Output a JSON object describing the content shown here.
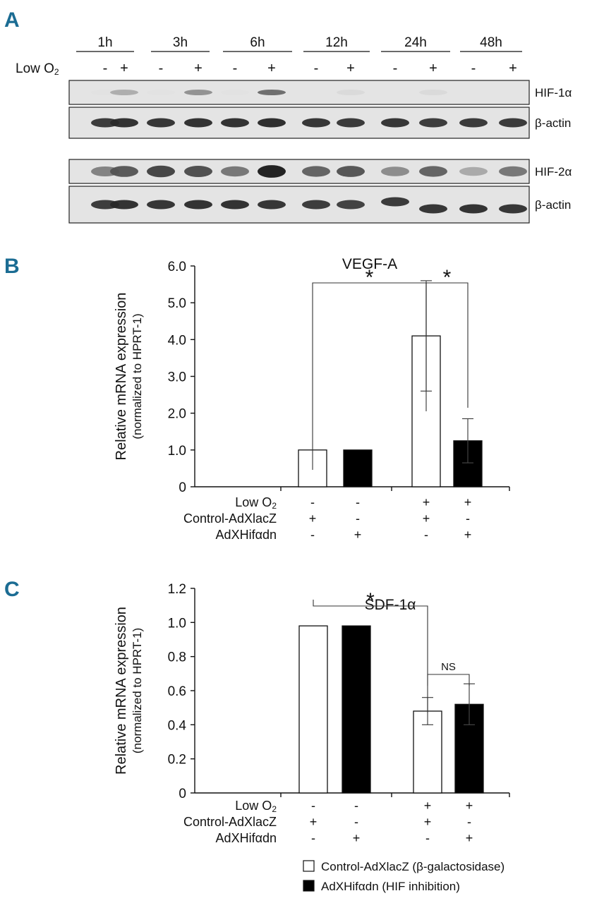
{
  "panel_a": {
    "letter": "A",
    "timepoints": [
      "1h",
      "3h",
      "6h",
      "12h",
      "24h",
      "48h"
    ],
    "condition_label": "Low O2",
    "signs": [
      "-",
      "+",
      "-",
      "+",
      "-",
      "+",
      "-",
      "+",
      "-",
      "+",
      "-",
      "+"
    ],
    "blots": [
      {
        "label": "HIF-1α",
        "intensities": [
          0.02,
          0.28,
          0.02,
          0.42,
          0.02,
          0.6,
          0.0,
          0.06,
          0.0,
          0.06,
          0.0,
          0.0
        ]
      },
      {
        "label": "β-actin",
        "intensities": [
          0.85,
          0.9,
          0.88,
          0.9,
          0.9,
          0.92,
          0.88,
          0.86,
          0.88,
          0.85,
          0.86,
          0.86
        ]
      },
      {
        "label": "HIF-2α",
        "intensities": [
          0.5,
          0.7,
          0.8,
          0.75,
          0.55,
          0.98,
          0.65,
          0.72,
          0.45,
          0.65,
          0.3,
          0.55
        ]
      },
      {
        "label": "β-actin",
        "intensities": [
          0.85,
          0.9,
          0.88,
          0.9,
          0.9,
          0.88,
          0.85,
          0.82,
          0.86,
          0.88,
          0.9,
          0.88
        ]
      }
    ]
  },
  "chart_data": [
    {
      "panel": "B",
      "type": "bar",
      "title": "VEGF-A",
      "ylabel": "Relative mRNA expression",
      "ylabel2": "(normalized to HPRT-1)",
      "ylim": [
        0,
        6
      ],
      "yticks": [
        "0",
        "1.0",
        "2.0",
        "3.0",
        "4.0",
        "5.0",
        "6.0"
      ],
      "row_labels": [
        "Low O2",
        "Control-AdXlacZ",
        "AdXHifαdn"
      ],
      "groups": [
        {
          "bars": [
            {
              "value": 1.0,
              "error": 0,
              "fill": "#ffffff",
              "signs": [
                "-",
                "+",
                "-"
              ]
            },
            {
              "value": 1.0,
              "error": 0,
              "fill": "#000000",
              "signs": [
                "-",
                "-",
                "+"
              ]
            }
          ]
        },
        {
          "bars": [
            {
              "value": 4.1,
              "error": 1.5,
              "fill": "#ffffff",
              "signs": [
                "+",
                "+",
                "-"
              ]
            },
            {
              "value": 1.25,
              "error": 0.6,
              "fill": "#000000",
              "signs": [
                "+",
                "-",
                "+"
              ]
            }
          ]
        }
      ],
      "significance": [
        {
          "from": [
            0,
            0
          ],
          "to": [
            1,
            0
          ],
          "label": "*"
        },
        {
          "from": [
            1,
            0
          ],
          "to": [
            1,
            1
          ],
          "label": "*"
        }
      ]
    },
    {
      "panel": "C",
      "type": "bar",
      "title": "SDF-1α",
      "ylabel": "Relative mRNA expression",
      "ylabel2": "(normalized to HPRT-1)",
      "ylim": [
        0,
        1.2
      ],
      "yticks": [
        "0",
        "0.2",
        "0.4",
        "0.6",
        "0.8",
        "1.0",
        "1.2"
      ],
      "row_labels": [
        "Low O2",
        "Control-AdXlacZ",
        "AdXHifαdn"
      ],
      "groups": [
        {
          "bars": [
            {
              "value": 0.98,
              "error": 0,
              "fill": "#ffffff",
              "signs": [
                "-",
                "+",
                "-"
              ]
            },
            {
              "value": 0.98,
              "error": 0,
              "fill": "#000000",
              "signs": [
                "-",
                "-",
                "+"
              ]
            }
          ]
        },
        {
          "bars": [
            {
              "value": 0.48,
              "error": 0.08,
              "fill": "#ffffff",
              "signs": [
                "+",
                "+",
                "-"
              ]
            },
            {
              "value": 0.52,
              "error": 0.12,
              "fill": "#000000",
              "signs": [
                "+",
                "-",
                "+"
              ]
            }
          ]
        }
      ],
      "significance": [
        {
          "from": [
            0,
            0
          ],
          "to": [
            1,
            0
          ],
          "label": "*"
        },
        {
          "from": [
            1,
            0
          ],
          "to": [
            1,
            1
          ],
          "label": "NS"
        }
      ]
    }
  ],
  "legend": {
    "items": [
      {
        "fill": "#ffffff",
        "label": "Control-AdXlacZ (β-galactosidase)"
      },
      {
        "fill": "#000000",
        "label": "AdXHifαdn (HIF inhibition)"
      }
    ]
  }
}
